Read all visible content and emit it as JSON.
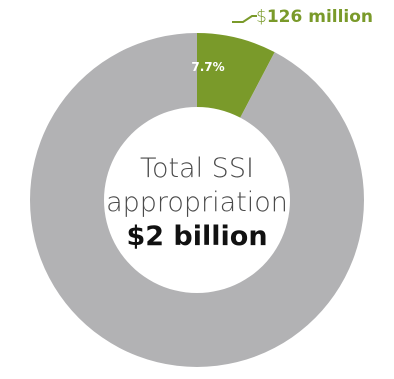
{
  "chart_data": {
    "type": "pie",
    "variant": "donut",
    "slices": [
      {
        "value_percent": 7.7,
        "color": "#7a9a2a",
        "label": "7.7%"
      },
      {
        "value_percent": 92.3,
        "color": "#b2b2b4",
        "label": ""
      }
    ],
    "callout": {
      "currency": "$",
      "amount": "126 million",
      "color": "#7a9a2a"
    },
    "center": {
      "line1": "Total SSI",
      "line2": "appropriation",
      "total": "$2 billion"
    },
    "legend": "none",
    "grid": false
  }
}
